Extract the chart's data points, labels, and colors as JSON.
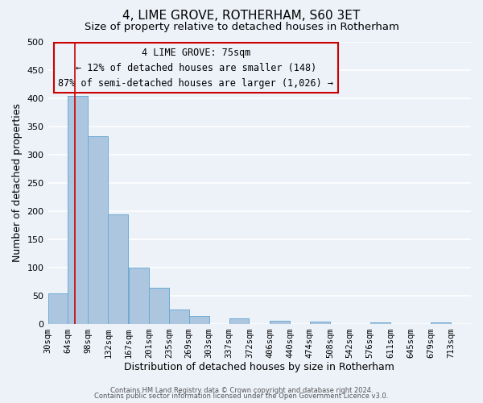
{
  "title": "4, LIME GROVE, ROTHERHAM, S60 3ET",
  "subtitle": "Size of property relative to detached houses in Rotherham",
  "xlabel": "Distribution of detached houses by size in Rotherham",
  "ylabel": "Number of detached properties",
  "bin_labels": [
    "30sqm",
    "64sqm",
    "98sqm",
    "132sqm",
    "167sqm",
    "201sqm",
    "235sqm",
    "269sqm",
    "303sqm",
    "337sqm",
    "372sqm",
    "406sqm",
    "440sqm",
    "474sqm",
    "508sqm",
    "542sqm",
    "576sqm",
    "611sqm",
    "645sqm",
    "679sqm",
    "713sqm"
  ],
  "bar_values": [
    53,
    403,
    332,
    193,
    99,
    63,
    25,
    14,
    0,
    10,
    0,
    5,
    0,
    3,
    0,
    0,
    2,
    0,
    0,
    2,
    0
  ],
  "bar_color": "#adc6e0",
  "bar_edge_color": "#6aaad4",
  "property_value": 75,
  "vline_color": "#cc0000",
  "annotation_text_line1": "4 LIME GROVE: 75sqm",
  "annotation_text_line2": "← 12% of detached houses are smaller (148)",
  "annotation_text_line3": "87% of semi-detached houses are larger (1,026) →",
  "annotation_box_color": "#cc0000",
  "ylim": [
    0,
    500
  ],
  "yticks": [
    0,
    50,
    100,
    150,
    200,
    250,
    300,
    350,
    400,
    450,
    500
  ],
  "footer_line1": "Contains HM Land Registry data © Crown copyright and database right 2024.",
  "footer_line2": "Contains public sector information licensed under the Open Government Licence v3.0.",
  "bg_color": "#edf2f9",
  "grid_color": "#ffffff",
  "title_fontsize": 11,
  "subtitle_fontsize": 9.5,
  "axis_label_fontsize": 9,
  "tick_fontsize": 7.5,
  "annotation_fontsize": 8.5,
  "footer_fontsize": 6
}
